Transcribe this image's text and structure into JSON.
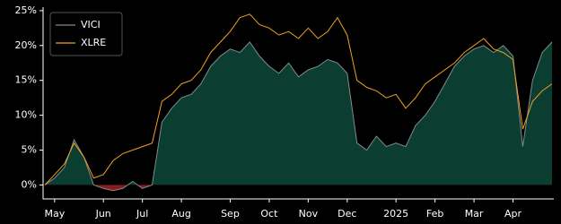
{
  "chart_data": {
    "type": "area-line",
    "categories": [
      null,
      "May",
      null,
      null,
      null,
      null,
      "Jun",
      null,
      null,
      null,
      "Jul",
      null,
      null,
      null,
      "Aug",
      null,
      null,
      null,
      null,
      "Sep",
      null,
      null,
      null,
      "Oct",
      null,
      null,
      null,
      "Nov",
      null,
      null,
      null,
      "Dec",
      null,
      null,
      null,
      null,
      "2025",
      null,
      null,
      null,
      "Feb",
      null,
      null,
      null,
      "Mar",
      null,
      null,
      null,
      "Apr",
      null,
      null,
      null,
      null
    ],
    "series": [
      {
        "name": "VICI",
        "color": "#7f8c8a",
        "fill": "#0b3d31",
        "negative_fill": "#8b1a1a",
        "values": [
          0,
          1,
          2.5,
          6.5,
          4,
          0,
          -0.5,
          -0.8,
          -0.5,
          0.5,
          -0.5,
          0,
          9,
          11,
          12.5,
          13,
          14.5,
          17,
          18.5,
          19.5,
          19,
          20.5,
          18.5,
          17,
          16,
          17.5,
          15.5,
          16.5,
          17,
          18,
          17.5,
          16,
          6,
          5,
          7,
          5.5,
          6,
          5.5,
          8.5,
          10,
          12,
          14.5,
          17,
          18.5,
          19.5,
          20,
          19,
          20,
          18.5,
          5.5,
          15,
          19,
          20.5
        ]
      },
      {
        "name": "XLRE",
        "color": "#f0a020",
        "values": [
          0,
          1.5,
          3,
          6,
          4,
          1,
          1.5,
          3.5,
          4.5,
          5,
          5.5,
          6,
          12,
          13,
          14.5,
          15,
          16.5,
          19,
          20.5,
          22,
          24,
          24.5,
          23,
          22.5,
          21.5,
          22,
          21,
          22.5,
          21,
          22,
          24,
          21.5,
          15,
          14,
          13.5,
          12.5,
          13,
          11,
          12.5,
          14.5,
          15.5,
          16.5,
          17.5,
          19,
          20,
          21,
          19.5,
          19,
          18,
          8,
          12,
          13.5,
          14.5
        ]
      }
    ],
    "ylim": [
      -2,
      25.5
    ],
    "yticks": [
      {
        "value": 0,
        "label": "0%"
      },
      {
        "value": 5,
        "label": "5%"
      },
      {
        "value": 10,
        "label": "10%"
      },
      {
        "value": 15,
        "label": "15%"
      },
      {
        "value": 20,
        "label": "20%"
      },
      {
        "value": 25,
        "label": "25%"
      }
    ],
    "legend": "upper left"
  }
}
